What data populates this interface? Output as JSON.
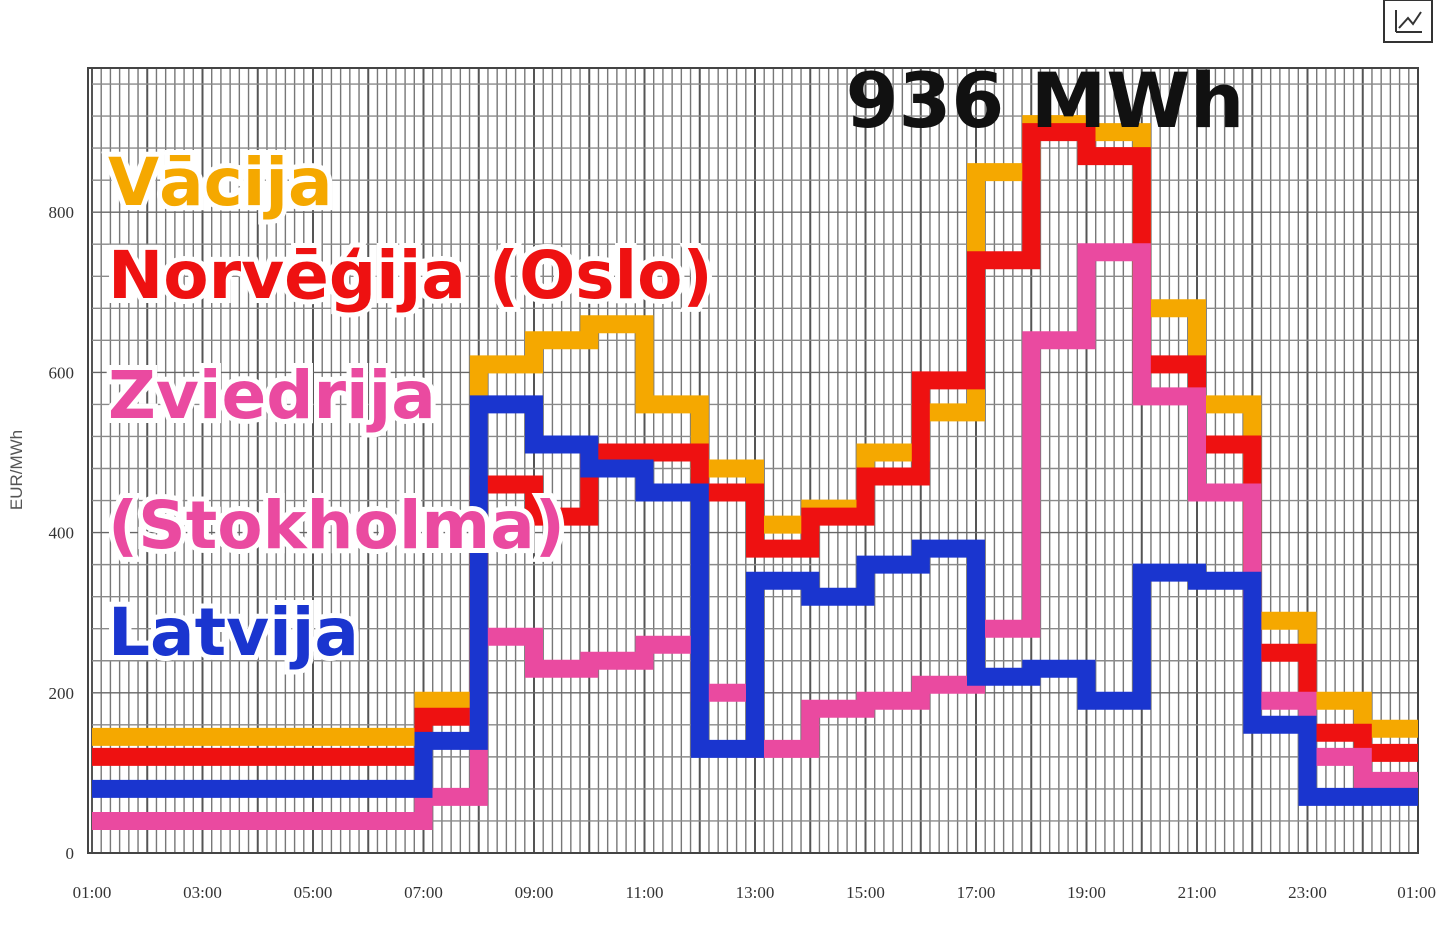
{
  "chart_data": {
    "type": "line",
    "step": true,
    "title": "936 MWh",
    "ylabel": "EUR/MWh",
    "xlabel": "",
    "ylim": [
      0,
      980
    ],
    "yticks": [
      0,
      200,
      400,
      600,
      800
    ],
    "ytick_labels": [
      "0",
      "200",
      "400",
      "600",
      "800"
    ],
    "xticks": [
      "01:00",
      "03:00",
      "05:00",
      "07:00",
      "09:00",
      "11:00",
      "13:00",
      "15:00",
      "17:00",
      "19:00",
      "21:00",
      "23:00",
      "01:00"
    ],
    "grid": true,
    "legend_position": "top-left",
    "hours": [
      "01:00",
      "02:00",
      "03:00",
      "04:00",
      "05:00",
      "06:00",
      "07:00",
      "08:00",
      "09:00",
      "10:00",
      "11:00",
      "12:00",
      "13:00",
      "14:00",
      "15:00",
      "16:00",
      "17:00",
      "18:00",
      "19:00",
      "20:00",
      "21:00",
      "22:00",
      "23:00",
      "24:00"
    ],
    "series": [
      {
        "name": "Vācija",
        "color": "#f5a800",
        "values": [
          145,
          145,
          145,
          145,
          145,
          145,
          190,
          610,
          640,
          660,
          560,
          480,
          410,
          430,
          500,
          550,
          850,
          910,
          900,
          680,
          560,
          290,
          190,
          155
        ]
      },
      {
        "name": "Norvēģija (Oslo)",
        "color": "#ee1111",
        "values": [
          120,
          120,
          120,
          120,
          120,
          120,
          170,
          460,
          420,
          500,
          500,
          450,
          380,
          420,
          470,
          590,
          740,
          900,
          870,
          610,
          510,
          250,
          150,
          125
        ]
      },
      {
        "name": "Zviedrija (Stokholma)",
        "color": "#ea4aa0",
        "values": [
          40,
          40,
          40,
          40,
          40,
          40,
          70,
          270,
          230,
          240,
          260,
          200,
          130,
          180,
          190,
          210,
          280,
          640,
          750,
          570,
          450,
          190,
          120,
          90
        ]
      },
      {
        "name": "Latvija",
        "color": "#1a35cf",
        "values": [
          80,
          80,
          80,
          80,
          80,
          80,
          140,
          560,
          510,
          480,
          450,
          130,
          340,
          320,
          360,
          380,
          220,
          230,
          190,
          350,
          340,
          160,
          70,
          70
        ]
      }
    ]
  }
}
